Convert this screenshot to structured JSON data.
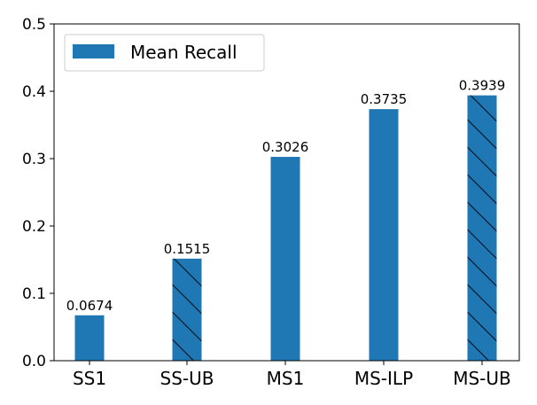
{
  "chart_data": {
    "type": "bar",
    "title": "",
    "xlabel": "",
    "ylabel": "",
    "categories": [
      "SS1",
      "SS-UB",
      "MS1",
      "MS-ILP",
      "MS-UB"
    ],
    "series": [
      {
        "name": "Mean Recall",
        "values": [
          0.0674,
          0.1515,
          0.3026,
          0.3735,
          0.3939
        ],
        "value_labels": [
          "0.0674",
          "0.1515",
          "0.3026",
          "0.3735",
          "0.3939"
        ],
        "hatched": [
          false,
          true,
          false,
          false,
          true
        ],
        "color": "#1f77b4"
      }
    ],
    "ylim": [
      0,
      0.5
    ],
    "yticks": [
      "0.0",
      "0.1",
      "0.2",
      "0.3",
      "0.4",
      "0.5"
    ],
    "grid": false,
    "legend": {
      "position": "upper left",
      "entries": [
        "Mean Recall"
      ]
    }
  }
}
